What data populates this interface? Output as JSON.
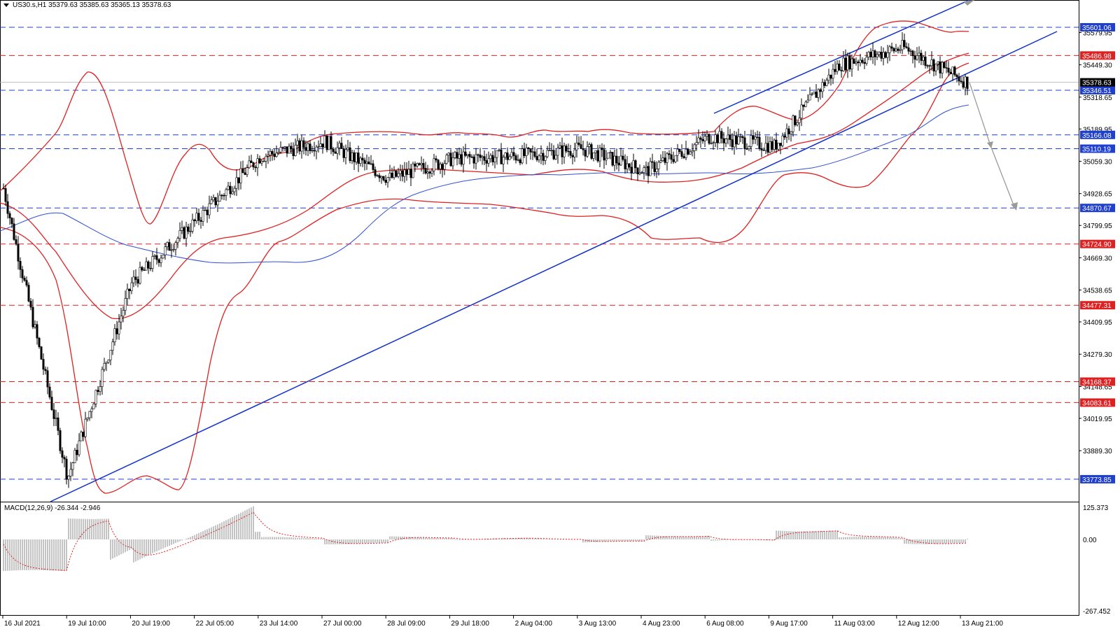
{
  "symbol_header": {
    "text": "US30.s,H1  35379.63 35385.63 35365.13 35378.63",
    "symbol": "US30.s",
    "timeframe": "H1",
    "open": "35379.63",
    "high": "35385.63",
    "low": "35365.13",
    "close": "35378.63"
  },
  "macd": {
    "label": "MACD(12,26,9) -26.344 -2.946",
    "ticks": [
      "125.373",
      "0.00",
      "-267.452"
    ]
  },
  "price_axis_ticks": [
    "35579.95",
    "35449.30",
    "35318.65",
    "35189.95",
    "35059.30",
    "34928.65",
    "34799.95",
    "34669.30",
    "34538.65",
    "34409.95",
    "34279.30",
    "34148.65",
    "34019.95",
    "33889.30"
  ],
  "horizontal_levels": [
    {
      "label": "35601.06",
      "price": 35601.06,
      "color": "#1f3fd0",
      "style": "dash"
    },
    {
      "label": "35486.98",
      "price": 35486.98,
      "color": "#e02020",
      "style": "dash"
    },
    {
      "label": "35346.51",
      "price": 35346.51,
      "color": "#1f3fd0",
      "style": "dash"
    },
    {
      "label": "35166.08",
      "price": 35166.08,
      "color": "#1f3fd0",
      "style": "dash"
    },
    {
      "label": "35110.19",
      "price": 35110.19,
      "color": "#1f3fd0",
      "style": "dash"
    },
    {
      "label": "34870.67",
      "price": 34870.67,
      "color": "#1f3fd0",
      "style": "dash"
    },
    {
      "label": "34724.90",
      "price": 34724.9,
      "color": "#e02020",
      "style": "dash"
    },
    {
      "label": "34477.31",
      "price": 34477.31,
      "color": "#e02020",
      "style": "dash"
    },
    {
      "label": "34168.37",
      "price": 34168.37,
      "color": "#e02020",
      "style": "dash"
    },
    {
      "label": "34083.61",
      "price": 34083.61,
      "color": "#e02020",
      "style": "dash"
    },
    {
      "label": "33773.85",
      "price": 33773.85,
      "color": "#1f3fd0",
      "style": "dash"
    }
  ],
  "current_price": {
    "label": "35378.63",
    "price": 35378.63
  },
  "time_axis_labels": [
    "16 Jul 2021",
    "19 Jul 10:00",
    "20 Jul 19:00",
    "22 Jul 05:00",
    "23 Jul 14:00",
    "27 Jul 00:00",
    "28 Jul 09:00",
    "29 Jul 18:00",
    "2 Aug 04:00",
    "3 Aug 13:00",
    "4 Aug 23:00",
    "6 Aug 08:00",
    "9 Aug 17:00",
    "11 Aug 03:00",
    "12 Aug 12:00",
    "13 Aug 21:00"
  ],
  "colors": {
    "bollinger": "#e02020",
    "trendline": "#1030c8",
    "sma": "#3050d0",
    "candle": "#000000",
    "macd_hist": "#8a8a8a",
    "macd_signal": "#e02020",
    "tag_blue": "#1f3fd0",
    "tag_red": "#e02020",
    "tag_current": "#000000",
    "projection_arrow": "#9a9a9a"
  },
  "chart_data": {
    "type": "candlestick",
    "symbol": "US30.s",
    "timeframe": "H1",
    "price_range": [
      33700,
      35720
    ],
    "close_path_keypoints": [
      {
        "time": "16 Jul 2021",
        "price": 34950
      },
      {
        "time": "19 Jul 10:00",
        "price": 33780
      },
      {
        "time": "20 Jul 19:00",
        "price": 34570
      },
      {
        "time": "22 Jul 05:00",
        "price": 34820
      },
      {
        "time": "23 Jul 14:00",
        "price": 35080
      },
      {
        "time": "27 Jul 00:00",
        "price": 35140
      },
      {
        "time": "28 Jul 09:00",
        "price": 34990
      },
      {
        "time": "29 Jul 18:00",
        "price": 35070
      },
      {
        "time": "2 Aug 04:00",
        "price": 35080
      },
      {
        "time": "3 Aug 13:00",
        "price": 35110
      },
      {
        "time": "4 Aug 23:00",
        "price": 35020
      },
      {
        "time": "6 Aug 08:00",
        "price": 35160
      },
      {
        "time": "9 Aug 17:00",
        "price": 35120
      },
      {
        "time": "11 Aug 03:00",
        "price": 35450
      },
      {
        "time": "12 Aug 12:00",
        "price": 35520
      },
      {
        "time": "13 Aug 21:00",
        "price": 35378.63
      }
    ]
  }
}
